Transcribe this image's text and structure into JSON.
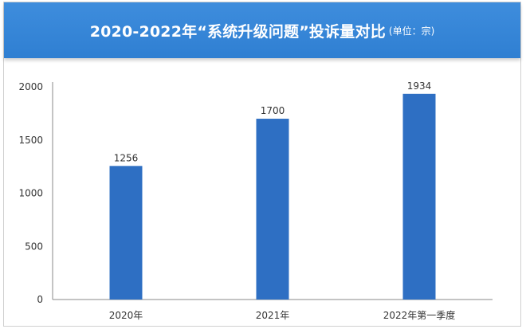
{
  "chart_data": {
    "type": "bar",
    "title": "2020-2022年“系统升级问题”投诉量对比",
    "unit": "(单位：宗)",
    "categories": [
      "2020年",
      "2021年",
      "2022年第一季度"
    ],
    "values": [
      1256,
      1700,
      1934
    ],
    "ylim": [
      0,
      2000
    ],
    "yticks": [
      0,
      500,
      1000,
      1500,
      2000
    ],
    "grid": false,
    "bar_color": "#2e6fc3"
  }
}
